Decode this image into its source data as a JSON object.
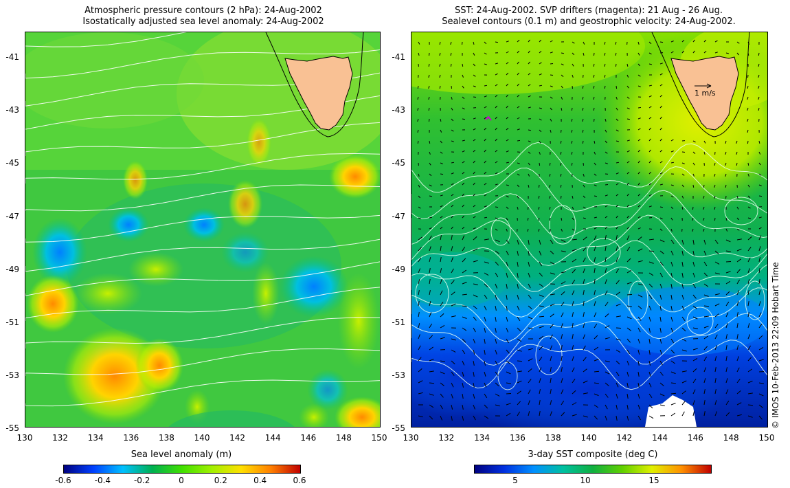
{
  "left_panel": {
    "title_line1": "Atmospheric pressure contours (2 hPa): 24-Aug-2002",
    "title_line2": "Isostatically adjusted sea level anomaly: 24-Aug-2002",
    "colorbar_label": "Sea level anomaly (m)",
    "colorbar_ticks": [
      "-0.6",
      "-0.4",
      "-0.2",
      "0",
      "0.2",
      "0.4",
      "0.6"
    ]
  },
  "right_panel": {
    "title_line1": "SST: 24-Aug-2002. SVP drifters (magenta): 21 Aug - 26 Aug.",
    "title_line2": "Sealevel contours (0.1 m) and geostrophic velocity: 24-Aug-2002.",
    "colorbar_label": "3-day SST composite (deg C)",
    "colorbar_ticks": [
      "5",
      "10",
      "15"
    ],
    "velocity_scale_label": "1 m/s"
  },
  "lat_ticks": [
    "-41",
    "-43",
    "-45",
    "-47",
    "-49",
    "-51",
    "-53",
    "-55"
  ],
  "lon_ticks": [
    "130",
    "132",
    "134",
    "136",
    "138",
    "140",
    "142",
    "144",
    "146",
    "148",
    "150"
  ],
  "credit": "© IMOS 10-Feb-2013 22:09 Hobart Time",
  "colors": {
    "land": "#f9c194",
    "sla_ramp": [
      "#000080",
      "#0040ff",
      "#00c0ff",
      "#00b050",
      "#40e000",
      "#a0f000",
      "#ffe000",
      "#ff8000",
      "#c00000"
    ],
    "sst_ramp": [
      "#000080",
      "#0030e0",
      "#0090ff",
      "#00c0a0",
      "#10b040",
      "#60d000",
      "#e0f000",
      "#ff9000",
      "#c00000"
    ]
  }
}
